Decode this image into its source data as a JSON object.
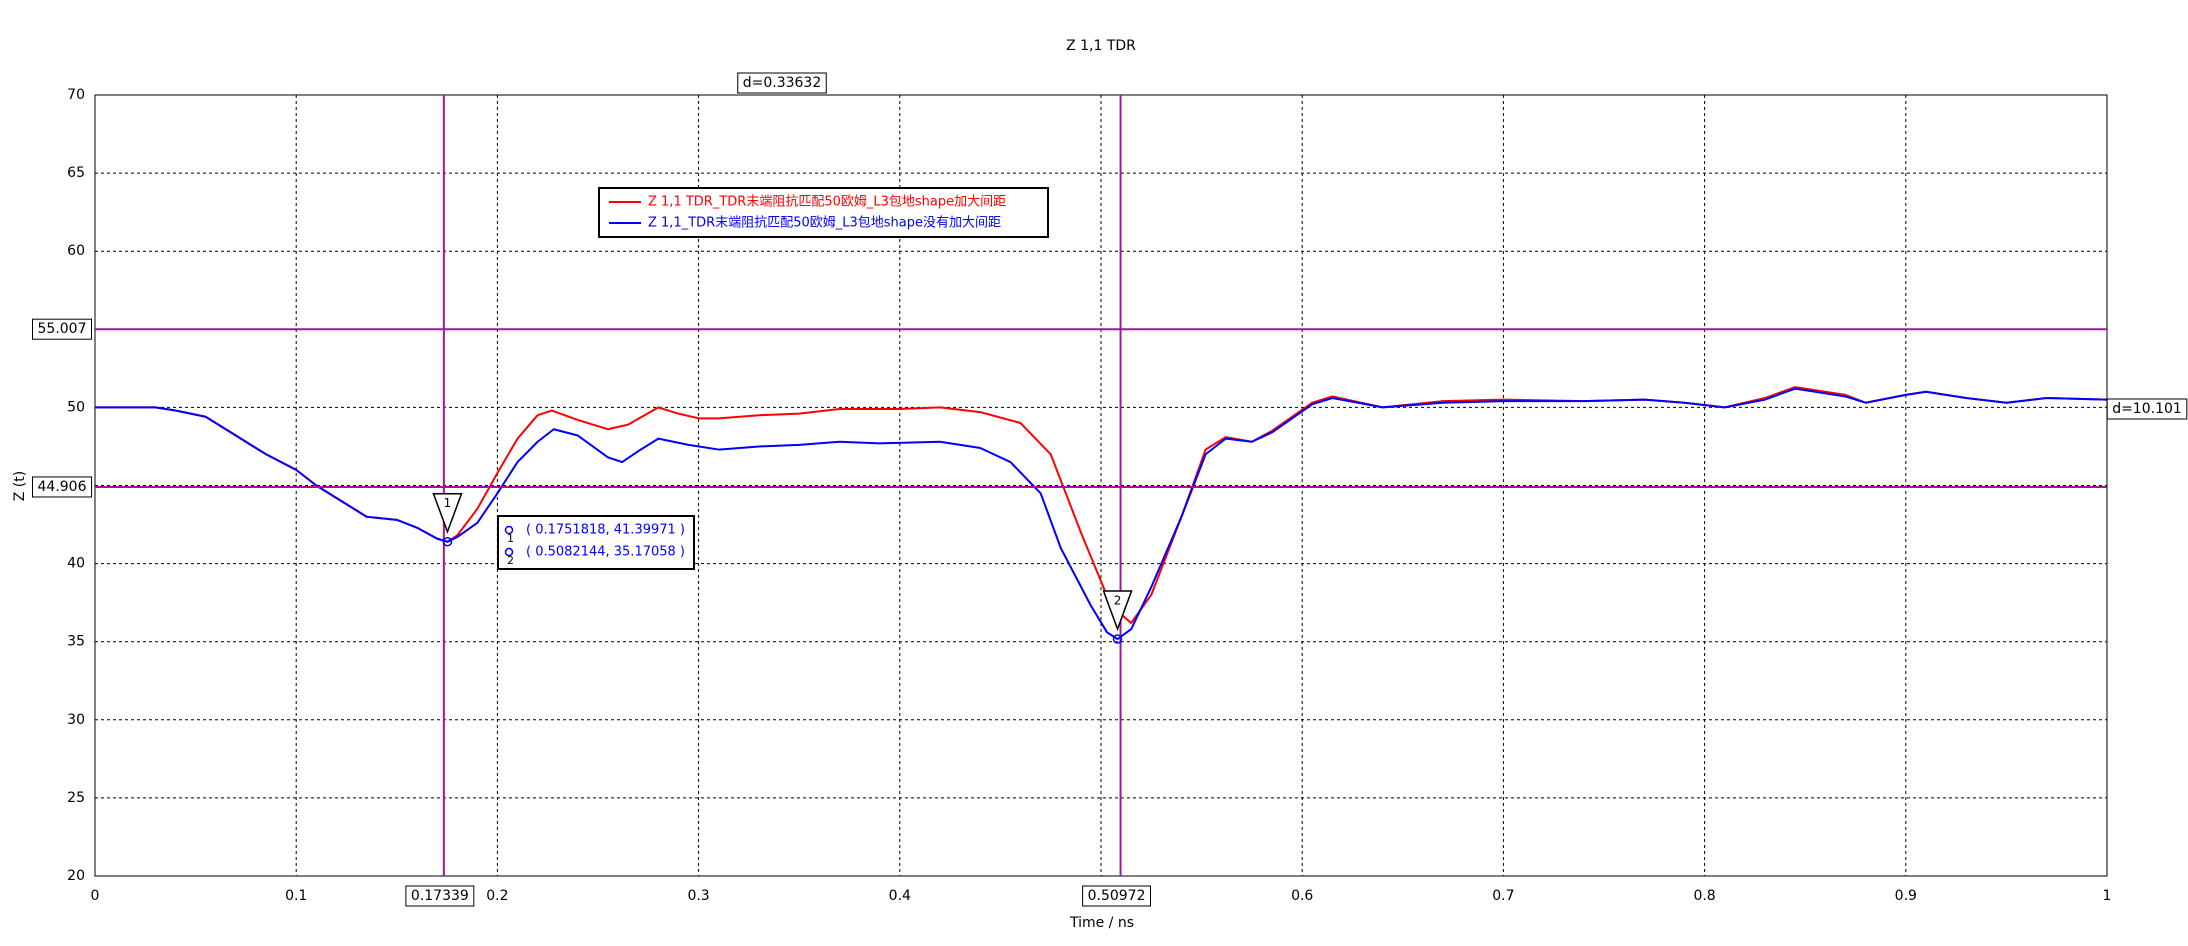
{
  "chart_data": {
    "type": "line",
    "title": "Z 1,1 TDR",
    "x_label": "Time / ns",
    "y_label": "Z (t)",
    "xlim": [
      0,
      1
    ],
    "ylim": [
      20,
      70
    ],
    "xticks": [
      0,
      0.1,
      0.2,
      0.3,
      0.4,
      0.5,
      0.6,
      0.7,
      0.8,
      0.9,
      1
    ],
    "yticks": [
      20,
      25,
      30,
      35,
      40,
      45,
      50,
      55,
      60,
      65,
      70
    ],
    "grid": true,
    "series": [
      {
        "name": "Z 1,1 TDR_TDR末端阻抗匹配50欧姆_L3包地shape加大间距",
        "color": "#ff0000",
        "x": [
          0,
          0.03,
          0.04,
          0.055,
          0.07,
          0.085,
          0.1,
          0.11,
          0.125,
          0.135,
          0.15,
          0.16,
          0.17,
          0.1752,
          0.18,
          0.19,
          0.2,
          0.21,
          0.22,
          0.227,
          0.24,
          0.255,
          0.265,
          0.28,
          0.29,
          0.3,
          0.31,
          0.33,
          0.35,
          0.37,
          0.4,
          0.42,
          0.44,
          0.46,
          0.475,
          0.49,
          0.505,
          0.515,
          0.525,
          0.54,
          0.552,
          0.562,
          0.575,
          0.585,
          0.605,
          0.615,
          0.64,
          0.67,
          0.7,
          0.74,
          0.77,
          0.79,
          0.81,
          0.83,
          0.845,
          0.87,
          0.88,
          0.9,
          0.91,
          0.93,
          0.95,
          0.97,
          1
        ],
        "values": [
          50,
          50,
          49.8,
          49.4,
          48.2,
          47,
          46,
          45,
          43.8,
          43,
          42.8,
          42.3,
          41.6,
          41.4,
          41.8,
          43.5,
          45.8,
          48,
          49.5,
          49.8,
          49.2,
          48.6,
          48.9,
          50,
          49.6,
          49.3,
          49.3,
          49.5,
          49.6,
          49.9,
          49.9,
          50,
          49.7,
          49,
          47,
          42,
          37.3,
          36.2,
          38,
          43,
          47.3,
          48.1,
          47.8,
          48.5,
          50.3,
          50.7,
          50,
          50.4,
          50.5,
          50.4,
          50.5,
          50.3,
          50,
          50.6,
          51.3,
          50.8,
          50.3,
          50.8,
          51,
          50.6,
          50.3,
          50.6,
          50.5
        ]
      },
      {
        "name": "Z 1,1_TDR末端阻抗匹配50欧姆_L3包地shape没有加大间距",
        "color": "#0000ff",
        "x": [
          0,
          0.03,
          0.04,
          0.055,
          0.07,
          0.085,
          0.1,
          0.11,
          0.125,
          0.135,
          0.15,
          0.16,
          0.17,
          0.1752,
          0.18,
          0.19,
          0.2,
          0.21,
          0.22,
          0.228,
          0.24,
          0.255,
          0.262,
          0.27,
          0.28,
          0.295,
          0.31,
          0.33,
          0.35,
          0.37,
          0.39,
          0.42,
          0.44,
          0.455,
          0.47,
          0.48,
          0.495,
          0.503,
          0.5082,
          0.515,
          0.525,
          0.54,
          0.552,
          0.562,
          0.575,
          0.585,
          0.605,
          0.615,
          0.64,
          0.67,
          0.7,
          0.74,
          0.77,
          0.79,
          0.81,
          0.83,
          0.845,
          0.87,
          0.88,
          0.9,
          0.91,
          0.93,
          0.95,
          0.97,
          1
        ],
        "values": [
          50,
          50,
          49.8,
          49.4,
          48.2,
          47,
          46,
          45,
          43.8,
          43,
          42.8,
          42.3,
          41.6,
          41.4,
          41.7,
          42.6,
          44.5,
          46.5,
          47.8,
          48.6,
          48.2,
          46.8,
          46.5,
          47.2,
          48,
          47.6,
          47.3,
          47.5,
          47.6,
          47.8,
          47.7,
          47.8,
          47.4,
          46.5,
          44.5,
          41,
          37.3,
          35.6,
          35.17,
          35.8,
          38.5,
          43,
          47,
          48,
          47.8,
          48.4,
          50.2,
          50.6,
          50,
          50.3,
          50.4,
          50.4,
          50.5,
          50.3,
          50,
          50.5,
          51.2,
          50.7,
          50.3,
          50.8,
          51,
          50.6,
          50.3,
          50.6,
          50.5
        ]
      }
    ],
    "h_cursors": [
      55.007,
      44.906
    ],
    "v_cursors": [
      0.17339,
      0.50972
    ],
    "h_delta": "d=10.101",
    "v_delta": "d=0.33632",
    "markers": [
      {
        "label": "1",
        "x": 0.1751818,
        "y": 41.39971,
        "text": "( 0.1751818, 41.39971 )"
      },
      {
        "label": "2",
        "x": 0.5082144,
        "y": 35.17058,
        "text": "( 0.5082144, 35.17058 )"
      }
    ]
  }
}
